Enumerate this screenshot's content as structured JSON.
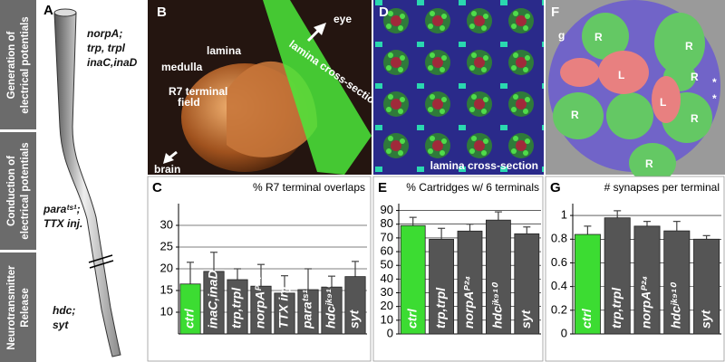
{
  "panels": {
    "A": {
      "label": "A",
      "sections": [
        [
          "Generation of",
          "electrical potentials"
        ],
        [
          "Conduction of",
          "electrical potentials"
        ],
        [
          "Neurotransmitter",
          "Release"
        ]
      ],
      "notes": [
        "norpA;",
        "trp, trpl",
        "inaC,inaD",
        "paraᵗˢ¹;",
        "TTX inj.",
        "hdc;",
        "syt"
      ]
    },
    "B": {
      "label": "B",
      "texts": [
        "eye",
        "lamina cross-section",
        "lamina",
        "medulla",
        "R7 terminal",
        "field",
        "brain"
      ]
    },
    "D": {
      "label": "D",
      "texts": [
        "lamina cross-section"
      ]
    },
    "F": {
      "label": "F",
      "texts": [
        "g",
        "R",
        "R",
        "R",
        "R",
        "R",
        "R",
        "L",
        "L",
        "*",
        "*"
      ]
    }
  },
  "chart_data": [
    {
      "type": "bar",
      "panel_label": "C",
      "title": "% R7 terminal overlaps",
      "categories": [
        "ctrl",
        "inaC,inaD",
        "trp,trpl",
        "norpAᴾ²⁴",
        "TTX inj.",
        "paraᵗˢ¹",
        "hdcʲᵏ⁹¹⁰",
        "syt"
      ],
      "values": [
        16.5,
        19.4,
        17.5,
        16,
        14.4,
        15.2,
        15.8,
        18.2
      ],
      "errors": [
        5,
        4.4,
        2.5,
        5,
        4,
        4.8,
        2.5,
        3.5
      ],
      "colors": [
        "#3cdc32",
        "#555555",
        "#555555",
        "#555555",
        "#555555",
        "#555555",
        "#555555",
        "#555555"
      ],
      "ylim": [
        5,
        35
      ],
      "yticks": [
        10,
        15,
        20,
        25,
        30
      ],
      "grid": true
    },
    {
      "type": "bar",
      "panel_label": "E",
      "title": "% Cartridges w/ 6 terminals",
      "categories": [
        "ctrl",
        "trp,trpl",
        "norpAᴾ²⁴",
        "hdcʲᵏ⁹¹⁰",
        "syt"
      ],
      "values": [
        79,
        69,
        75,
        83,
        73
      ],
      "errors": [
        6,
        8,
        5,
        6,
        5
      ],
      "colors": [
        "#3cdc32",
        "#555555",
        "#555555",
        "#555555",
        "#555555"
      ],
      "ylim": [
        0,
        95
      ],
      "yticks": [
        0,
        10,
        20,
        30,
        40,
        50,
        60,
        70,
        80,
        90
      ],
      "grid": true
    },
    {
      "type": "bar",
      "panel_label": "G",
      "title": "# synapses per terminal",
      "categories": [
        "ctrl",
        "trp,trpl",
        "norpAᴾ²⁴",
        "hdcʲᵏ⁹¹⁰",
        "syt"
      ],
      "values": [
        0.84,
        0.98,
        0.91,
        0.87,
        0.8
      ],
      "errors": [
        0.07,
        0.06,
        0.04,
        0.08,
        0.03
      ],
      "colors": [
        "#3cdc32",
        "#555555",
        "#555555",
        "#555555",
        "#555555"
      ],
      "ylim": [
        0,
        1.1
      ],
      "yticks": [
        0,
        0.2,
        0.4,
        0.6,
        0.8,
        1
      ],
      "grid": true
    }
  ]
}
